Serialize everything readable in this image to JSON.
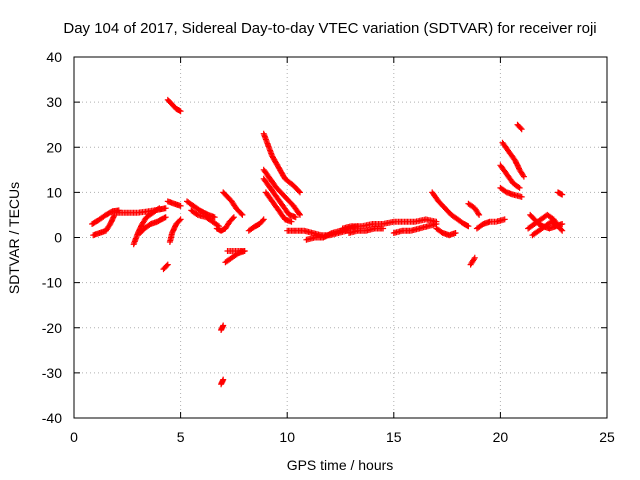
{
  "chart_data": {
    "type": "scatter",
    "title": "Day 104 of 2017, Sidereal Day-to-day VTEC variation (SDTVAR) for receiver roji",
    "xlabel": "GPS time / hours",
    "ylabel": "SDTVAR / TECUs",
    "xlim": [
      0,
      25
    ],
    "ylim": [
      -40,
      40
    ],
    "xticks": [
      0,
      5,
      10,
      15,
      20,
      25
    ],
    "yticks": [
      -40,
      -30,
      -20,
      -10,
      0,
      10,
      20,
      30,
      40
    ],
    "grid": true,
    "marker": "+",
    "color": "#ff0000",
    "series": [
      {
        "name": "SDTVAR",
        "tracks": [
          [
            [
              0.85,
              3.0
            ],
            [
              1.2,
              4.0
            ],
            [
              1.5,
              5.0
            ],
            [
              1.8,
              5.8
            ],
            [
              2.1,
              6.0
            ]
          ],
          [
            [
              0.9,
              0.5
            ],
            [
              1.2,
              1.0
            ],
            [
              1.5,
              1.5
            ],
            [
              1.7,
              3.0
            ],
            [
              1.9,
              5.0
            ]
          ],
          [
            [
              2.0,
              5.5
            ],
            [
              2.5,
              5.5
            ],
            [
              3.0,
              5.5
            ],
            [
              3.5,
              5.8
            ],
            [
              4.0,
              6.2
            ],
            [
              4.3,
              6.5
            ]
          ],
          [
            [
              2.8,
              -1.5
            ],
            [
              3.0,
              1.0
            ],
            [
              3.2,
              3.0
            ],
            [
              3.4,
              4.5
            ],
            [
              3.7,
              5.5
            ],
            [
              4.0,
              6.5
            ]
          ],
          [
            [
              3.1,
              1.0
            ],
            [
              3.3,
              2.0
            ],
            [
              3.6,
              3.0
            ],
            [
              3.9,
              3.5
            ],
            [
              4.3,
              4.5
            ]
          ],
          [
            [
              4.2,
              -7.0
            ],
            [
              4.4,
              -6.0
            ]
          ],
          [
            [
              4.4,
              30.5
            ],
            [
              4.6,
              29.5
            ],
            [
              4.8,
              28.5
            ],
            [
              5.0,
              28.0
            ]
          ],
          [
            [
              4.5,
              -1.0
            ],
            [
              4.6,
              1.0
            ],
            [
              4.8,
              3.0
            ],
            [
              5.0,
              4.0
            ]
          ],
          [
            [
              4.4,
              8.0
            ],
            [
              4.7,
              7.5
            ],
            [
              5.0,
              7.0
            ]
          ],
          [
            [
              5.3,
              8.0
            ],
            [
              5.6,
              7.0
            ],
            [
              5.9,
              6.0
            ],
            [
              6.3,
              5.0
            ],
            [
              6.6,
              4.5
            ]
          ],
          [
            [
              5.5,
              6.0
            ],
            [
              5.8,
              5.0
            ],
            [
              6.2,
              4.5
            ],
            [
              6.5,
              3.5
            ],
            [
              6.8,
              2.5
            ]
          ],
          [
            [
              6.7,
              2.0
            ],
            [
              6.9,
              1.5
            ],
            [
              7.1,
              2.0
            ],
            [
              7.3,
              3.5
            ],
            [
              7.5,
              4.5
            ]
          ],
          [
            [
              7.0,
              10.0
            ],
            [
              7.2,
              9.0
            ],
            [
              7.4,
              8.0
            ],
            [
              7.6,
              6.5
            ],
            [
              7.9,
              5.0
            ]
          ],
          [
            [
              6.9,
              -20.5
            ],
            [
              7.0,
              -19.5
            ]
          ],
          [
            [
              6.9,
              -32.5
            ],
            [
              7.0,
              -31.5
            ]
          ],
          [
            [
              7.1,
              -5.5
            ],
            [
              7.4,
              -4.5
            ],
            [
              7.7,
              -3.5
            ],
            [
              8.0,
              -3.0
            ]
          ],
          [
            [
              7.2,
              -3.0
            ],
            [
              7.5,
              -3.0
            ],
            [
              7.8,
              -3.0
            ],
            [
              8.0,
              -3.0
            ]
          ],
          [
            [
              8.2,
              1.5
            ],
            [
              8.5,
              2.5
            ],
            [
              8.7,
              3.0
            ],
            [
              8.9,
              4.0
            ]
          ],
          [
            [
              8.9,
              23.0
            ],
            [
              9.1,
              20.5
            ],
            [
              9.3,
              18.0
            ],
            [
              9.6,
              15.5
            ],
            [
              9.9,
              13.0
            ],
            [
              10.3,
              11.5
            ],
            [
              10.6,
              10.0
            ]
          ],
          [
            [
              8.9,
              15.0
            ],
            [
              9.2,
              13.0
            ],
            [
              9.5,
              11.0
            ],
            [
              9.9,
              9.0
            ],
            [
              10.3,
              7.0
            ],
            [
              10.6,
              5.0
            ]
          ],
          [
            [
              8.9,
              13.0
            ],
            [
              9.2,
              11.0
            ],
            [
              9.5,
              9.0
            ],
            [
              9.8,
              7.0
            ],
            [
              10.1,
              5.0
            ],
            [
              10.4,
              4.5
            ]
          ],
          [
            [
              9.0,
              10.0
            ],
            [
              9.3,
              8.0
            ],
            [
              9.6,
              6.0
            ],
            [
              9.9,
              4.0
            ],
            [
              10.2,
              3.5
            ]
          ],
          [
            [
              10.0,
              1.5
            ],
            [
              10.4,
              1.5
            ],
            [
              10.8,
              1.5
            ],
            [
              11.2,
              1.0
            ],
            [
              11.6,
              0.5
            ],
            [
              12.0,
              0.5
            ],
            [
              12.4,
              1.0
            ],
            [
              12.8,
              1.5
            ]
          ],
          [
            [
              10.9,
              -0.5
            ],
            [
              11.3,
              0.0
            ],
            [
              11.7,
              0.0
            ],
            [
              12.1,
              1.0
            ],
            [
              12.5,
              1.5
            ],
            [
              12.9,
              2.0
            ],
            [
              13.3,
              2.5
            ]
          ],
          [
            [
              12.6,
              2.0
            ],
            [
              13.0,
              2.5
            ],
            [
              13.5,
              2.5
            ],
            [
              14.0,
              3.0
            ],
            [
              14.5,
              3.0
            ],
            [
              15.0,
              3.5
            ],
            [
              15.5,
              3.5
            ],
            [
              16.0,
              3.5
            ],
            [
              16.5,
              4.0
            ],
            [
              17.0,
              3.5
            ]
          ],
          [
            [
              12.9,
              1.0
            ],
            [
              13.3,
              1.5
            ],
            [
              13.7,
              1.5
            ],
            [
              14.1,
              2.0
            ],
            [
              14.5,
              2.0
            ]
          ],
          [
            [
              15.0,
              1.0
            ],
            [
              15.4,
              1.5
            ],
            [
              15.8,
              1.5
            ],
            [
              16.2,
              2.0
            ],
            [
              16.6,
              2.5
            ],
            [
              17.0,
              3.0
            ]
          ],
          [
            [
              16.8,
              10.0
            ],
            [
              17.1,
              8.0
            ],
            [
              17.4,
              6.5
            ],
            [
              17.7,
              5.0
            ],
            [
              18.0,
              4.0
            ],
            [
              18.3,
              3.0
            ],
            [
              18.5,
              2.5
            ]
          ],
          [
            [
              17.0,
              2.0
            ],
            [
              17.3,
              1.0
            ],
            [
              17.6,
              0.5
            ],
            [
              17.9,
              1.0
            ]
          ],
          [
            [
              18.5,
              7.5
            ],
            [
              18.8,
              6.5
            ],
            [
              19.0,
              5.0
            ]
          ],
          [
            [
              18.6,
              -6.0
            ],
            [
              18.8,
              -4.5
            ]
          ],
          [
            [
              18.9,
              2.0
            ],
            [
              19.2,
              3.0
            ],
            [
              19.5,
              3.5
            ],
            [
              19.8,
              3.5
            ],
            [
              20.2,
              4.0
            ]
          ],
          [
            [
              20.1,
              21.0
            ],
            [
              20.4,
              19.0
            ],
            [
              20.7,
              17.0
            ],
            [
              20.9,
              15.0
            ],
            [
              21.1,
              13.5
            ]
          ],
          [
            [
              20.0,
              16.0
            ],
            [
              20.3,
              14.0
            ],
            [
              20.6,
              12.0
            ],
            [
              20.9,
              11.0
            ]
          ],
          [
            [
              20.0,
              11.0
            ],
            [
              20.3,
              10.0
            ],
            [
              20.6,
              9.5
            ],
            [
              21.0,
              9.0
            ]
          ],
          [
            [
              20.8,
              25.0
            ],
            [
              21.0,
              24.0
            ]
          ],
          [
            [
              21.4,
              5.0
            ],
            [
              21.6,
              4.0
            ],
            [
              21.8,
              3.0
            ],
            [
              22.0,
              2.5
            ],
            [
              22.3,
              2.0
            ],
            [
              22.6,
              2.5
            ],
            [
              22.9,
              3.0
            ]
          ],
          [
            [
              21.3,
              2.0
            ],
            [
              21.6,
              3.0
            ],
            [
              21.9,
              4.0
            ],
            [
              22.2,
              5.0
            ],
            [
              22.5,
              4.0
            ],
            [
              22.8,
              2.0
            ]
          ],
          [
            [
              21.5,
              0.5
            ],
            [
              21.8,
              1.5
            ],
            [
              22.1,
              2.5
            ],
            [
              22.4,
              3.5
            ],
            [
              22.7,
              2.5
            ],
            [
              22.9,
              1.5
            ]
          ],
          [
            [
              22.7,
              10.0
            ],
            [
              22.9,
              9.5
            ]
          ]
        ]
      }
    ]
  }
}
